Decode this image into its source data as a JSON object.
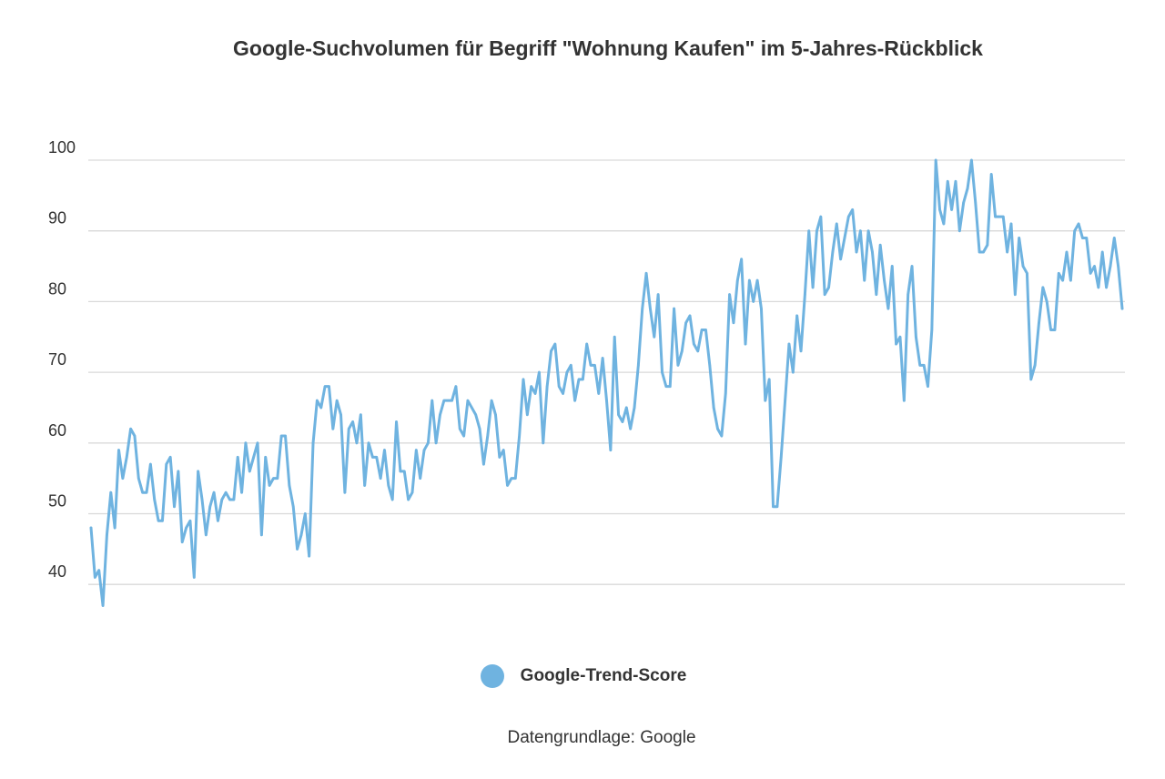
{
  "colors": {
    "series": "#6fb3e0",
    "grid": "#d9d9d9",
    "text": "#333333"
  },
  "chart_data": {
    "type": "line",
    "title": "Google-Suchvolumen für Begriff \"Wohnung Kaufen\" im 5-Jahres-Rückblick",
    "xlabel": "",
    "ylabel": "",
    "ylim": [
      37,
      100
    ],
    "yticks": [
      40,
      50,
      60,
      70,
      80,
      90,
      100
    ],
    "grid": true,
    "legend_position": "bottom",
    "source": "Datengrundlage: Google",
    "series": [
      {
        "name": "Google-Trend-Score",
        "values": [
          48,
          41,
          42,
          37,
          47,
          53,
          48,
          59,
          55,
          58,
          62,
          61,
          55,
          53,
          53,
          57,
          52,
          49,
          49,
          57,
          58,
          51,
          56,
          46,
          48,
          49,
          41,
          56,
          52,
          47,
          51,
          53,
          49,
          52,
          53,
          52,
          52,
          58,
          53,
          60,
          56,
          58,
          60,
          47,
          58,
          54,
          55,
          55,
          61,
          61,
          54,
          51,
          45,
          47,
          50,
          44,
          60,
          66,
          65,
          68,
          68,
          62,
          66,
          64,
          53,
          62,
          63,
          60,
          64,
          54,
          60,
          58,
          58,
          55,
          59,
          54,
          52,
          63,
          56,
          56,
          52,
          53,
          59,
          55,
          59,
          60,
          66,
          60,
          64,
          66,
          66,
          66,
          68,
          62,
          61,
          66,
          65,
          64,
          62,
          57,
          61,
          66,
          64,
          58,
          59,
          54,
          55,
          55,
          61,
          69,
          64,
          68,
          67,
          70,
          60,
          68,
          73,
          74,
          68,
          67,
          70,
          71,
          66,
          69,
          69,
          74,
          71,
          71,
          67,
          72,
          66,
          59,
          75,
          64,
          63,
          65,
          62,
          65,
          71,
          79,
          84,
          79,
          75,
          81,
          70,
          68,
          68,
          79,
          71,
          73,
          77,
          78,
          74,
          73,
          76,
          76,
          71,
          65,
          62,
          61,
          67,
          81,
          77,
          83,
          86,
          74,
          83,
          80,
          83,
          79,
          66,
          69,
          51,
          51,
          58,
          66,
          74,
          70,
          78,
          73,
          81,
          90,
          82,
          90,
          92,
          81,
          82,
          87,
          91,
          86,
          89,
          92,
          93,
          87,
          90,
          83,
          90,
          87,
          81,
          88,
          83,
          79,
          85,
          74,
          75,
          66,
          81,
          85,
          75,
          71,
          71,
          68,
          76,
          100,
          93,
          91,
          97,
          93,
          97,
          90,
          94,
          96,
          100,
          94,
          87,
          87,
          88,
          98,
          92,
          92,
          92,
          87,
          91,
          81,
          89,
          85,
          84,
          69,
          71,
          77,
          82,
          80,
          76,
          76,
          84,
          83,
          87,
          83,
          90,
          91,
          89,
          89,
          84,
          85,
          82,
          87,
          82,
          85,
          89,
          85,
          79
        ]
      }
    ]
  }
}
